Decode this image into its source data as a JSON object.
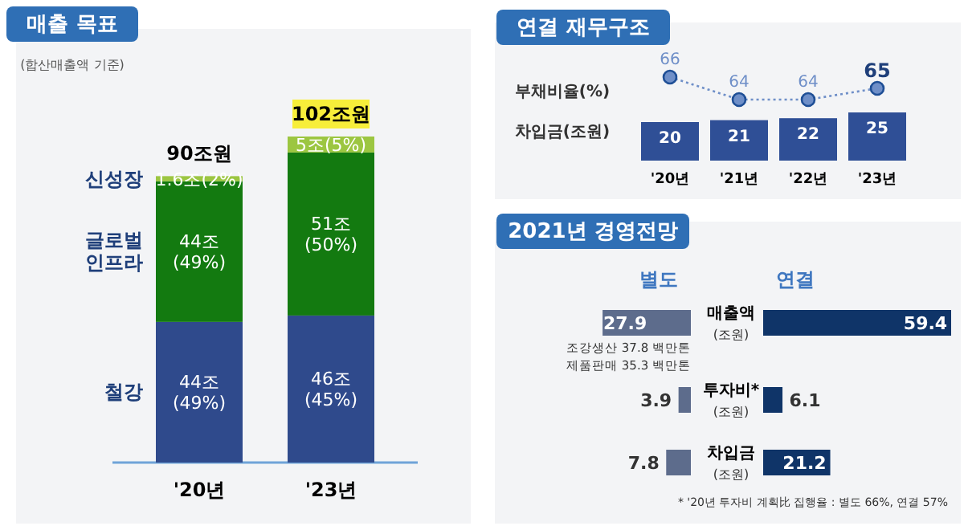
{
  "chart_data": [
    {
      "type": "bar",
      "stacked": true,
      "title": "매출 목표",
      "subtitle": "(합산매출액 기준)",
      "categories": [
        "'20년",
        "'23년"
      ],
      "series": [
        {
          "name": "철강",
          "color": "#2f4a8c",
          "values": [
            44,
            46
          ],
          "value_labels": [
            "44조\n(49%)",
            "46조\n(45%)"
          ]
        },
        {
          "name": "글로벌\n인프라",
          "color": "#137a10",
          "values": [
            44,
            51
          ],
          "value_labels": [
            "44조\n(49%)",
            "51조\n(50%)"
          ]
        },
        {
          "name": "신성장",
          "color": "#9cc641",
          "values": [
            1.6,
            5
          ],
          "value_labels": [
            "1.6조(2%)",
            "5조(5%)"
          ]
        }
      ],
      "totals": [
        "90조원",
        "102조원"
      ]
    },
    {
      "type": "line",
      "title": "연결 재무구조",
      "categories": [
        null,
        null,
        null,
        null
      ],
      "data_labels": true,
      "marker": "circle",
      "line_style": "dotted",
      "series": [
        {
          "name": "부채비율(%)",
          "color": "#6f8fc8",
          "values": [
            66,
            64,
            64,
            65
          ]
        }
      ]
    },
    {
      "type": "bar",
      "categories": [
        "'20년",
        "'21년",
        "'22년",
        "'23년"
      ],
      "data_labels": true,
      "series": [
        {
          "name": "차입금(조원)",
          "color": "#2f4f96",
          "values": [
            20,
            21,
            22,
            25
          ]
        }
      ]
    },
    {
      "type": "bar",
      "orientation": "horizontal",
      "title": "2021년 경영전망",
      "categories": [
        "매출액\n(조원)",
        "투자비*\n(조원)",
        "차입금\n(조원)"
      ],
      "data_labels": true,
      "series": [
        {
          "name": "별도",
          "color": "#5d6c8c",
          "values": [
            27.9,
            3.9,
            7.8
          ]
        }
      ],
      "annotations": [
        "조강생산 37.8 백만톤",
        "제품판매 35.3 백만톤"
      ]
    },
    {
      "type": "bar",
      "orientation": "horizontal",
      "categories": [
        null,
        null,
        null
      ],
      "data_labels": true,
      "series": [
        {
          "name": "연결",
          "color": "#0f3468",
          "values": [
            59.4,
            6.1,
            21.2
          ]
        }
      ],
      "annotations": [
        "* '20년 투자비 계획比 집행율 : 별도 66%, 연결 57%"
      ]
    }
  ]
}
